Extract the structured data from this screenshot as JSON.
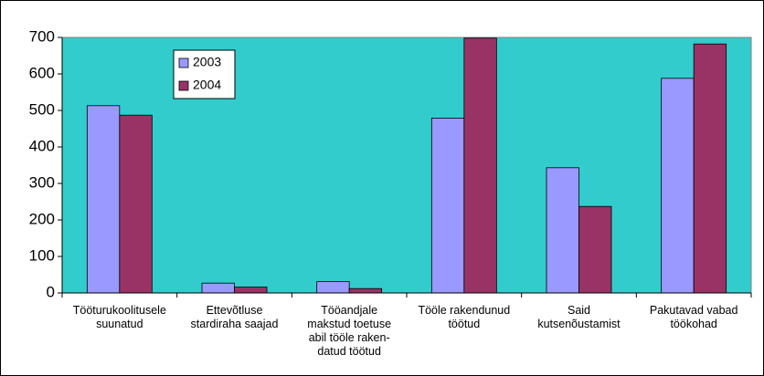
{
  "chart_data": {
    "type": "bar",
    "categories": [
      "Tööturukoolitusele\nsuunatud",
      "Ettevõtluse\nstardiraha saajad",
      "Tööandjale\nmakstud toetuse\nabil tööle raken-\ndatud töötud",
      "Tööle rakendunud\ntöötud",
      "Said\nkutsenõustamist",
      "Pakutavad vabad\ntöökohad"
    ],
    "series": [
      {
        "name": "2003",
        "color": "#9999ff",
        "values": [
          513,
          27,
          31,
          479,
          343,
          588
        ]
      },
      {
        "name": "2004",
        "color": "#993366",
        "values": [
          487,
          16,
          12,
          698,
          237,
          682
        ]
      }
    ],
    "ylim": [
      0,
      700
    ],
    "yticks": [
      0,
      100,
      200,
      300,
      400,
      500,
      600,
      700
    ],
    "plot_background": "#33cccc",
    "legend": "top-left"
  }
}
